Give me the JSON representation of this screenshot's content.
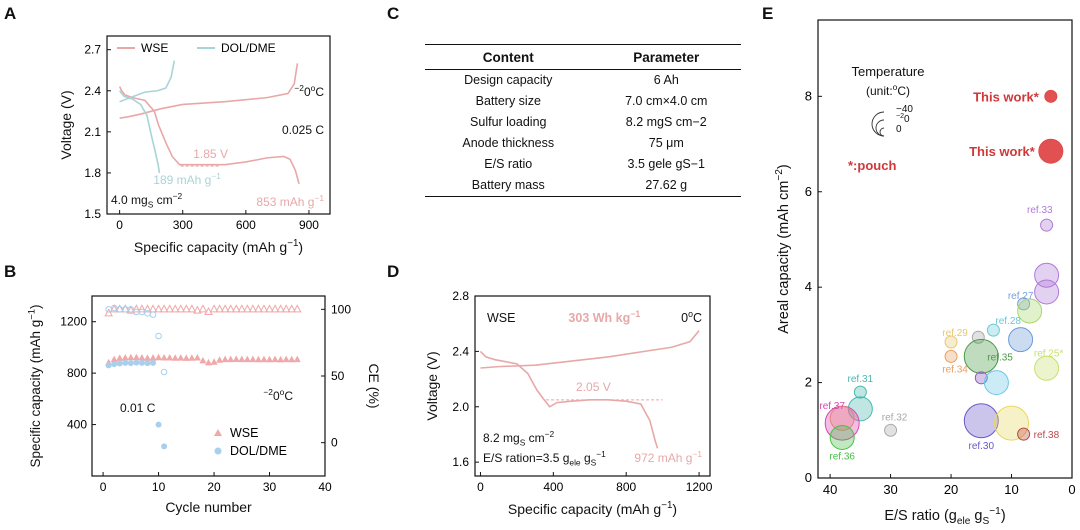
{
  "panels": {
    "a": "A",
    "b": "B",
    "c": "C",
    "d": "D",
    "e": "E"
  },
  "panel_c": {
    "headers": [
      "Content",
      "Parameter"
    ],
    "rows": [
      {
        "content": "Design capacity",
        "param": "6 Ah"
      },
      {
        "content": "Battery size",
        "param": "7.0 cm×4.0 cm"
      },
      {
        "content": "Sulfur loading",
        "param": "8.2 mgS cm−2"
      },
      {
        "content": "Anode thickness",
        "param": "75 μm"
      },
      {
        "content": "E/S ratio",
        "param": "3.5 gele gS−1"
      },
      {
        "content": "Battery mass",
        "param": "27.62 g"
      }
    ]
  },
  "chart_data": [
    {
      "id": "A",
      "type": "line",
      "xlabel": "Specific capacity (mAh g−1)",
      "ylabel": "Voltage (V)",
      "xlim": [
        -60,
        1000
      ],
      "ylim": [
        1.5,
        2.8
      ],
      "xticks": [
        0,
        300,
        600,
        900
      ],
      "yticks": [
        1.5,
        1.8,
        2.1,
        2.4,
        2.7
      ],
      "legend_position": "top",
      "annotations": [
        "−20oC",
        "0.025 C",
        "1.85 V",
        "189 mAh g−1",
        "853 mAh g−1",
        "4.0 mgS cm−2"
      ],
      "series": [
        {
          "name": "WSE",
          "color": "#e9a8a8",
          "segments": [
            [
              [
                0,
                2.43
              ],
              [
                10,
                2.4
              ],
              [
                25,
                2.37
              ],
              [
                60,
                2.35
              ],
              [
                120,
                2.33
              ],
              [
                165,
                2.25
              ],
              [
                185,
                2.15
              ],
              [
                220,
                2.02
              ],
              [
                250,
                1.92
              ],
              [
                285,
                1.86
              ],
              [
                400,
                1.86
              ],
              [
                500,
                1.86
              ],
              [
                600,
                1.88
              ],
              [
                700,
                1.91
              ],
              [
                780,
                1.92
              ],
              [
                810,
                1.9
              ],
              [
                835,
                1.82
              ],
              [
                853,
                1.72
              ]
            ],
            [
              [
                0,
                2.2
              ],
              [
                40,
                2.21
              ],
              [
                100,
                2.23
              ],
              [
                200,
                2.27
              ],
              [
                300,
                2.3
              ],
              [
                500,
                2.32
              ],
              [
                700,
                2.35
              ],
              [
                800,
                2.38
              ],
              [
                830,
                2.45
              ],
              [
                845,
                2.6
              ]
            ]
          ]
        },
        {
          "name": "DOL/DME",
          "color": "#a8d4d8",
          "segments": [
            [
              [
                0,
                2.4
              ],
              [
                20,
                2.36
              ],
              [
                60,
                2.34
              ],
              [
                100,
                2.3
              ],
              [
                130,
                2.22
              ],
              [
                150,
                2.08
              ],
              [
                170,
                1.95
              ],
              [
                183,
                1.86
              ],
              [
                189,
                1.8
              ]
            ],
            [
              [
                0,
                2.32
              ],
              [
                50,
                2.35
              ],
              [
                120,
                2.39
              ],
              [
                180,
                2.4
              ],
              [
                220,
                2.42
              ],
              [
                245,
                2.5
              ],
              [
                260,
                2.62
              ]
            ]
          ]
        }
      ]
    },
    {
      "id": "B",
      "type": "scatter",
      "xlabel": "Cycle number",
      "ylabel": "Specific capacity (mAh g−1)",
      "y2label": "CE (%)",
      "xlim": [
        -2,
        40
      ],
      "ylim": [
        0,
        1400
      ],
      "y2lim": [
        -25,
        110
      ],
      "xticks": [
        0,
        10,
        20,
        30,
        40
      ],
      "yticks": [
        400,
        800,
        1200
      ],
      "y2ticks": [
        0,
        50,
        100
      ],
      "legend_position": "bottom-right",
      "annotations": [
        "0.01 C",
        "−20oC"
      ],
      "series": [
        {
          "name": "WSE",
          "color": "#f0a8a8",
          "marker": "triangle",
          "capacity": [
            880,
            905,
            915,
            918,
            920,
            920,
            918,
            915,
            917,
            920,
            918,
            918,
            916,
            917,
            915,
            916,
            918,
            895,
            880,
            885,
            900,
            905,
            905,
            906,
            905,
            905,
            905,
            904,
            905,
            904,
            905,
            903,
            905,
            904,
            905
          ],
          "ce": [
            97,
            100,
            100,
            100,
            99,
            100,
            100,
            100,
            100,
            100,
            100,
            100,
            100,
            100,
            100,
            100,
            99,
            100,
            98,
            100,
            100,
            100,
            100,
            100,
            100,
            100,
            100,
            100,
            100,
            100,
            100,
            100,
            100,
            100,
            100
          ]
        },
        {
          "name": "DOL/DME",
          "color": "#a8d0ee",
          "marker": "circle",
          "capacity": [
            860,
            870,
            875,
            880,
            878,
            882,
            880,
            878,
            880,
            400,
            230
          ],
          "ce": [
            100,
            101,
            100,
            100,
            100,
            98,
            98,
            97,
            96,
            80,
            53
          ]
        }
      ]
    },
    {
      "id": "D",
      "type": "line",
      "xlabel": "Specific capacity (mAh g−1)",
      "ylabel": "Voltage (V)",
      "xlim": [
        -30,
        1260
      ],
      "ylim": [
        1.5,
        2.8
      ],
      "xticks": [
        0,
        400,
        800,
        1200
      ],
      "yticks": [
        1.6,
        2.0,
        2.4,
        2.8
      ],
      "annotations": [
        "WSE",
        "303 Wh kg−1",
        "0oC",
        "2.05 V",
        "8.2 mgS cm−2",
        "E/S ration=3.5 gele gS−1",
        "972 mAh g−1"
      ],
      "series": [
        {
          "name": "WSE",
          "color": "#e8a8a8",
          "segments": [
            [
              [
                0,
                2.4
              ],
              [
                30,
                2.36
              ],
              [
                80,
                2.34
              ],
              [
                200,
                2.31
              ],
              [
                260,
                2.24
              ],
              [
                310,
                2.12
              ],
              [
                350,
                2.05
              ],
              [
                380,
                2.0
              ],
              [
                420,
                2.03
              ],
              [
                500,
                2.04
              ],
              [
                600,
                2.05
              ],
              [
                700,
                2.05
              ],
              [
                800,
                2.04
              ],
              [
                880,
                2.02
              ],
              [
                930,
                1.9
              ],
              [
                960,
                1.75
              ],
              [
                972,
                1.7
              ]
            ],
            [
              [
                0,
                2.28
              ],
              [
                100,
                2.29
              ],
              [
                300,
                2.3
              ],
              [
                500,
                2.33
              ],
              [
                700,
                2.36
              ],
              [
                900,
                2.4
              ],
              [
                1050,
                2.43
              ],
              [
                1150,
                2.47
              ],
              [
                1200,
                2.55
              ]
            ]
          ]
        }
      ]
    },
    {
      "id": "E",
      "type": "scatter",
      "xlabel": "E/S ratio (gele gS−1)",
      "ylabel": "Areal capacity (mAh cm−2)",
      "xlim": [
        42,
        0
      ],
      "ylim": [
        0,
        9.6
      ],
      "xticks": [
        40,
        30,
        20,
        10,
        0
      ],
      "yticks": [
        0,
        2,
        4,
        6,
        8
      ],
      "x_axis_reversed": true,
      "legend": {
        "title": "Temperature",
        "unit": "(unit:oC)",
        "sizes": [
          "−40",
          "−20",
          "0"
        ],
        "note": "*:pouch"
      },
      "points": [
        {
          "label": "This work*",
          "x": 3.5,
          "y": 8.0,
          "size": 0,
          "color": "#e04848"
        },
        {
          "label": "This work*",
          "x": 3.5,
          "y": 6.85,
          "size": -20,
          "color": "#e04848"
        },
        {
          "label": "ref.33",
          "x": 4.2,
          "y": 5.3,
          "size": 0,
          "color": "#b07ad8"
        },
        {
          "label": "",
          "x": 4.2,
          "y": 4.25,
          "size": -20,
          "color": "#b07ad8"
        },
        {
          "label": "",
          "x": 4.2,
          "y": 3.9,
          "size": -20,
          "color": "#b07ad8"
        },
        {
          "label": "ref.27",
          "x": 8.0,
          "y": 3.65,
          "size": 0,
          "color": "#7aa0d8"
        },
        {
          "label": "",
          "x": 7.0,
          "y": 3.5,
          "size": -20,
          "color": "#a8d86a"
        },
        {
          "label": "",
          "x": 8.5,
          "y": 2.9,
          "size": -20,
          "color": "#6a9ad8"
        },
        {
          "label": "ref.28",
          "x": 13.0,
          "y": 3.1,
          "size": 0,
          "color": "#6ac8d8"
        },
        {
          "label": "ref.29",
          "x": 20.0,
          "y": 2.85,
          "size": 0,
          "color": "#e8c870"
        },
        {
          "label": "",
          "x": 15.5,
          "y": 2.95,
          "size": 0,
          "color": "#a8a8a8"
        },
        {
          "label": "ref.35",
          "x": 15.0,
          "y": 2.55,
          "size": -40,
          "color": "#4a9a48"
        },
        {
          "label": "ref.34",
          "x": 20.0,
          "y": 2.55,
          "size": 0,
          "color": "#e8a060"
        },
        {
          "label": "ref.25*",
          "x": 4.2,
          "y": 2.3,
          "size": -20,
          "color": "#c8e070"
        },
        {
          "label": "",
          "x": 15.0,
          "y": 2.1,
          "size": 0,
          "color": "#8a58b8"
        },
        {
          "label": "",
          "x": 12.5,
          "y": 2.0,
          "size": -20,
          "color": "#6ac8e8"
        },
        {
          "label": "ref.30",
          "x": 15.0,
          "y": 1.2,
          "size": -40,
          "color": "#6a58c8"
        },
        {
          "label": "",
          "x": 10.0,
          "y": 1.15,
          "size": -40,
          "color": "#e8d860"
        },
        {
          "label": "ref.38",
          "x": 8.0,
          "y": 0.92,
          "size": 0,
          "color": "#b84848"
        },
        {
          "label": "ref.31",
          "x": 35.0,
          "y": 1.8,
          "size": 0,
          "color": "#48b8b0"
        },
        {
          "label": "",
          "x": 35.0,
          "y": 1.45,
          "size": -20,
          "color": "#48b8b0"
        },
        {
          "label": "ref.37",
          "x": 38.0,
          "y": 1.15,
          "size": -40,
          "color": "#d848b0"
        },
        {
          "label": "",
          "x": 38.0,
          "y": 1.25,
          "size": -20,
          "color": "#e88080"
        },
        {
          "label": "ref.36",
          "x": 38.0,
          "y": 0.85,
          "size": -20,
          "color": "#48c048"
        },
        {
          "label": "ref.32",
          "x": 30.0,
          "y": 1.0,
          "size": 0,
          "color": "#a8a8a8"
        }
      ]
    }
  ]
}
